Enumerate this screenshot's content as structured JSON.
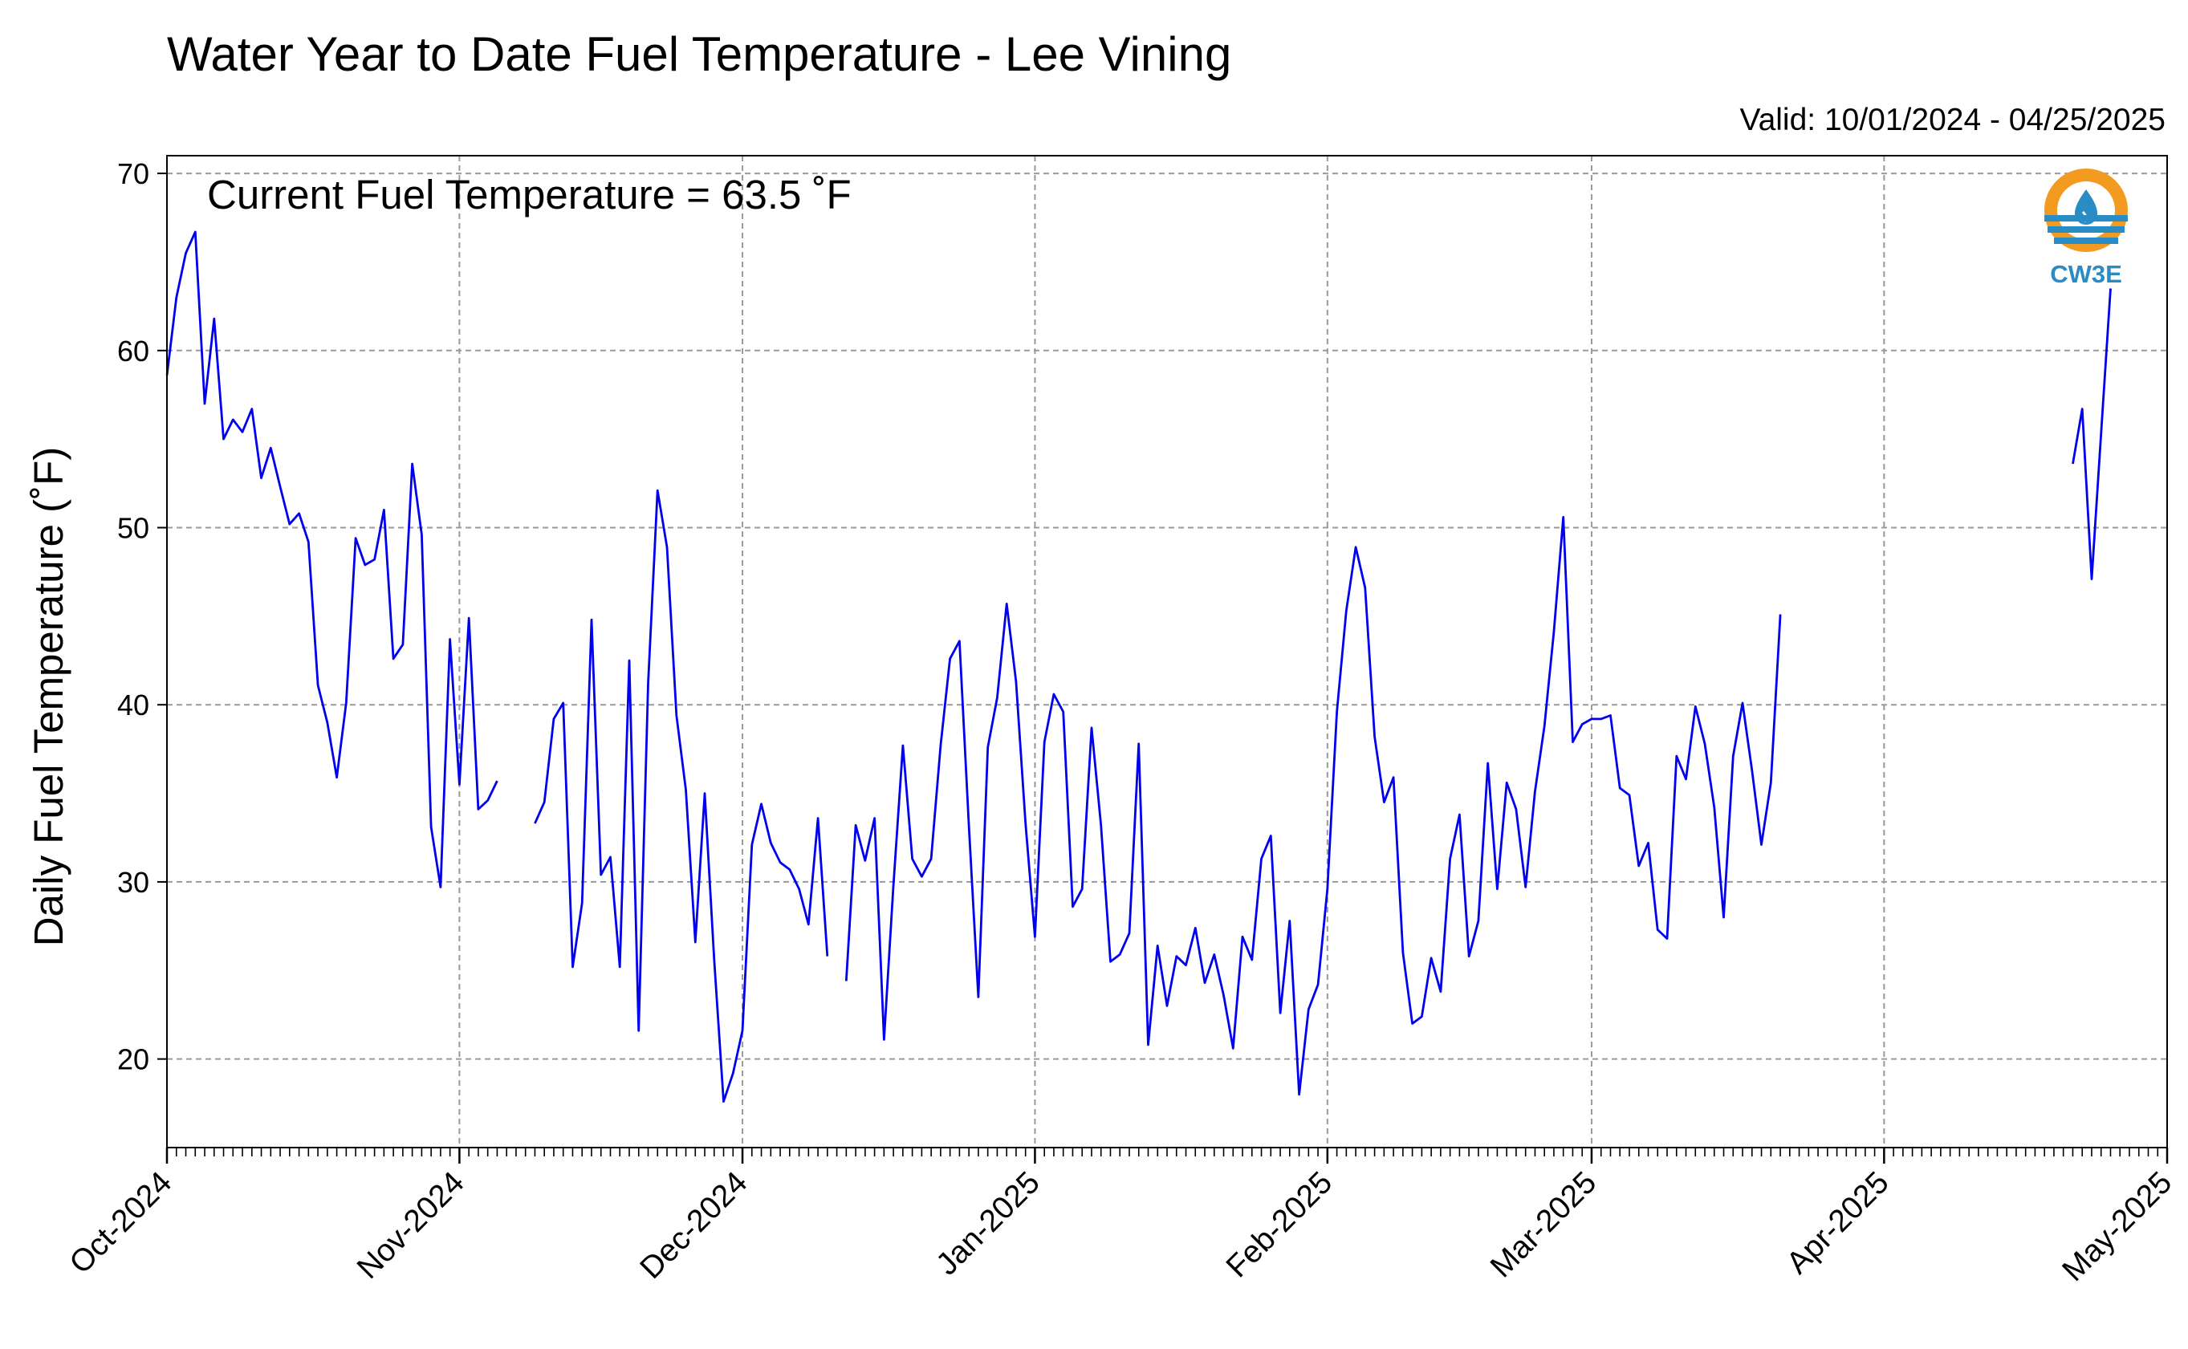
{
  "chart_data": {
    "type": "line",
    "title": "Water Year to Date Fuel Temperature - Lee Vining",
    "subtitle": "Valid: 10/01/2024 - 04/25/2025",
    "annotation": "Current Fuel Temperature = 63.5 ˚F",
    "ylabel": "Daily Fuel Temperature (˚F)",
    "xlabel": "",
    "xlim": [
      "2024-10-01",
      "2025-05-01"
    ],
    "ylim": [
      15,
      71
    ],
    "yticks": [
      20,
      30,
      40,
      50,
      60,
      70
    ],
    "xticks": [
      {
        "date": "2024-10-01",
        "label": "Oct-2024"
      },
      {
        "date": "2024-11-01",
        "label": "Nov-2024"
      },
      {
        "date": "2024-12-01",
        "label": "Dec-2024"
      },
      {
        "date": "2025-01-01",
        "label": "Jan-2025"
      },
      {
        "date": "2025-02-01",
        "label": "Feb-2025"
      },
      {
        "date": "2025-03-01",
        "label": "Mar-2025"
      },
      {
        "date": "2025-04-01",
        "label": "Apr-2025"
      },
      {
        "date": "2025-05-01",
        "label": "May-2025"
      }
    ],
    "grid": true,
    "series": [
      {
        "color": "#0000ee",
        "points": [
          [
            "2024-10-01",
            58.6
          ],
          [
            "2024-10-02",
            63.0
          ],
          [
            "2024-10-03",
            65.5
          ],
          [
            "2024-10-04",
            66.7
          ],
          [
            "2024-10-05",
            57.0
          ],
          [
            "2024-10-06",
            61.8
          ],
          [
            "2024-10-07",
            55.0
          ],
          [
            "2024-10-08",
            56.1
          ],
          [
            "2024-10-09",
            55.4
          ],
          [
            "2024-10-10",
            56.7
          ],
          [
            "2024-10-11",
            52.8
          ],
          [
            "2024-10-12",
            54.5
          ],
          [
            "2024-10-13",
            52.3
          ],
          [
            "2024-10-14",
            50.2
          ],
          [
            "2024-10-15",
            50.8
          ],
          [
            "2024-10-16",
            49.2
          ],
          [
            "2024-10-17",
            41.1
          ],
          [
            "2024-10-18",
            39.0
          ],
          [
            "2024-10-19",
            35.9
          ],
          [
            "2024-10-20",
            40.1
          ],
          [
            "2024-10-21",
            49.4
          ],
          [
            "2024-10-22",
            47.9
          ],
          [
            "2024-10-23",
            48.2
          ],
          [
            "2024-10-24",
            51.0
          ],
          [
            "2024-10-25",
            42.6
          ],
          [
            "2024-10-26",
            43.4
          ],
          [
            "2024-10-27",
            53.6
          ],
          [
            "2024-10-28",
            49.6
          ],
          [
            "2024-10-29",
            33.1
          ],
          [
            "2024-10-30",
            29.7
          ],
          [
            "2024-10-31",
            43.7
          ],
          [
            "2024-11-01",
            35.5
          ],
          [
            "2024-11-02",
            44.9
          ],
          [
            "2024-11-03",
            34.1
          ],
          [
            "2024-11-04",
            34.6
          ],
          [
            "2024-11-05",
            35.7
          ],
          [
            "2024-11-06",
            null
          ],
          [
            "2024-11-07",
            null
          ],
          [
            "2024-11-08",
            null
          ],
          [
            "2024-11-09",
            33.3
          ],
          [
            "2024-11-10",
            34.5
          ],
          [
            "2024-11-11",
            39.2
          ],
          [
            "2024-11-12",
            40.1
          ],
          [
            "2024-11-13",
            25.2
          ],
          [
            "2024-11-14",
            28.8
          ],
          [
            "2024-11-15",
            44.8
          ],
          [
            "2024-11-16",
            30.4
          ],
          [
            "2024-11-17",
            31.4
          ],
          [
            "2024-11-18",
            25.2
          ],
          [
            "2024-11-19",
            42.5
          ],
          [
            "2024-11-20",
            21.6
          ],
          [
            "2024-11-21",
            41.2
          ],
          [
            "2024-11-22",
            52.1
          ],
          [
            "2024-11-23",
            48.9
          ],
          [
            "2024-11-24",
            39.4
          ],
          [
            "2024-11-25",
            35.2
          ],
          [
            "2024-11-26",
            26.6
          ],
          [
            "2024-11-27",
            35.0
          ],
          [
            "2024-11-28",
            25.6
          ],
          [
            "2024-11-29",
            17.6
          ],
          [
            "2024-11-30",
            19.2
          ],
          [
            "2024-12-01",
            21.6
          ],
          [
            "2024-12-02",
            32.1
          ],
          [
            "2024-12-03",
            34.4
          ],
          [
            "2024-12-04",
            32.2
          ],
          [
            "2024-12-05",
            31.1
          ],
          [
            "2024-12-06",
            30.7
          ],
          [
            "2024-12-07",
            29.6
          ],
          [
            "2024-12-08",
            27.6
          ],
          [
            "2024-12-09",
            33.6
          ],
          [
            "2024-12-10",
            25.8
          ],
          [
            "2024-12-11",
            null
          ],
          [
            "2024-12-12",
            24.4
          ],
          [
            "2024-12-13",
            33.2
          ],
          [
            "2024-12-14",
            31.2
          ],
          [
            "2024-12-15",
            33.6
          ],
          [
            "2024-12-16",
            21.1
          ],
          [
            "2024-12-17",
            29.8
          ],
          [
            "2024-12-18",
            37.7
          ],
          [
            "2024-12-19",
            31.3
          ],
          [
            "2024-12-20",
            30.3
          ],
          [
            "2024-12-21",
            31.3
          ],
          [
            "2024-12-22",
            37.7
          ],
          [
            "2024-12-23",
            42.6
          ],
          [
            "2024-12-24",
            43.6
          ],
          [
            "2024-12-25",
            33.1
          ],
          [
            "2024-12-26",
            23.5
          ],
          [
            "2024-12-27",
            37.6
          ],
          [
            "2024-12-28",
            40.4
          ],
          [
            "2024-12-29",
            45.7
          ],
          [
            "2024-12-30",
            41.3
          ],
          [
            "2024-12-31",
            33.3
          ],
          [
            "2025-01-01",
            26.9
          ],
          [
            "2025-01-02",
            37.9
          ],
          [
            "2025-01-03",
            40.6
          ],
          [
            "2025-01-04",
            39.6
          ],
          [
            "2025-01-05",
            28.6
          ],
          [
            "2025-01-06",
            29.6
          ],
          [
            "2025-01-07",
            38.7
          ],
          [
            "2025-01-08",
            33.2
          ],
          [
            "2025-01-09",
            25.5
          ],
          [
            "2025-01-10",
            25.9
          ],
          [
            "2025-01-11",
            27.1
          ],
          [
            "2025-01-12",
            37.8
          ],
          [
            "2025-01-13",
            20.8
          ],
          [
            "2025-01-14",
            26.4
          ],
          [
            "2025-01-15",
            23.0
          ],
          [
            "2025-01-16",
            25.8
          ],
          [
            "2025-01-17",
            25.3
          ],
          [
            "2025-01-18",
            27.4
          ],
          [
            "2025-01-19",
            24.3
          ],
          [
            "2025-01-20",
            25.9
          ],
          [
            "2025-01-21",
            23.6
          ],
          [
            "2025-01-22",
            20.6
          ],
          [
            "2025-01-23",
            26.9
          ],
          [
            "2025-01-24",
            25.6
          ],
          [
            "2025-01-25",
            31.3
          ],
          [
            "2025-01-26",
            32.6
          ],
          [
            "2025-01-27",
            22.6
          ],
          [
            "2025-01-28",
            27.8
          ],
          [
            "2025-01-29",
            18.0
          ],
          [
            "2025-01-30",
            22.8
          ],
          [
            "2025-01-31",
            24.2
          ],
          [
            "2025-02-01",
            29.6
          ],
          [
            "2025-02-02",
            39.6
          ],
          [
            "2025-02-03",
            45.3
          ],
          [
            "2025-02-04",
            48.9
          ],
          [
            "2025-02-05",
            46.6
          ],
          [
            "2025-02-06",
            38.2
          ],
          [
            "2025-02-07",
            34.5
          ],
          [
            "2025-02-08",
            35.9
          ],
          [
            "2025-02-09",
            26.0
          ],
          [
            "2025-02-10",
            22.0
          ],
          [
            "2025-02-11",
            22.4
          ],
          [
            "2025-02-12",
            25.7
          ],
          [
            "2025-02-13",
            23.8
          ],
          [
            "2025-02-14",
            31.3
          ],
          [
            "2025-02-15",
            33.8
          ],
          [
            "2025-02-16",
            25.8
          ],
          [
            "2025-02-17",
            27.8
          ],
          [
            "2025-02-18",
            36.7
          ],
          [
            "2025-02-19",
            29.6
          ],
          [
            "2025-02-20",
            35.6
          ],
          [
            "2025-02-21",
            34.1
          ],
          [
            "2025-02-22",
            29.7
          ],
          [
            "2025-02-23",
            35.1
          ],
          [
            "2025-02-24",
            38.8
          ],
          [
            "2025-02-25",
            44.1
          ],
          [
            "2025-02-26",
            50.6
          ],
          [
            "2025-02-27",
            37.9
          ],
          [
            "2025-02-28",
            38.9
          ],
          [
            "2025-03-01",
            39.2
          ],
          [
            "2025-03-02",
            39.2
          ],
          [
            "2025-03-03",
            39.4
          ],
          [
            "2025-03-04",
            35.3
          ],
          [
            "2025-03-05",
            34.9
          ],
          [
            "2025-03-06",
            30.9
          ],
          [
            "2025-03-07",
            32.2
          ],
          [
            "2025-03-08",
            27.3
          ],
          [
            "2025-03-09",
            26.8
          ],
          [
            "2025-03-10",
            37.1
          ],
          [
            "2025-03-11",
            35.8
          ],
          [
            "2025-03-12",
            39.9
          ],
          [
            "2025-03-13",
            37.8
          ],
          [
            "2025-03-14",
            34.2
          ],
          [
            "2025-03-15",
            28.0
          ],
          [
            "2025-03-16",
            37.1
          ],
          [
            "2025-03-17",
            40.1
          ],
          [
            "2025-03-18",
            36.3
          ],
          [
            "2025-03-19",
            32.1
          ],
          [
            "2025-03-20",
            35.6
          ],
          [
            "2025-03-21",
            45.1
          ],
          [
            "2025-03-22",
            null
          ],
          [
            "2025-04-21",
            53.6
          ],
          [
            "2025-04-22",
            56.7
          ],
          [
            "2025-04-23",
            47.1
          ],
          [
            "2025-04-24",
            55.3
          ],
          [
            "2025-04-25",
            63.5
          ]
        ]
      }
    ]
  },
  "logo": {
    "text": "CW3E",
    "colors": {
      "sun": "#f39a21",
      "water": "#2a8cc4",
      "text": "#2a8cc4"
    }
  }
}
